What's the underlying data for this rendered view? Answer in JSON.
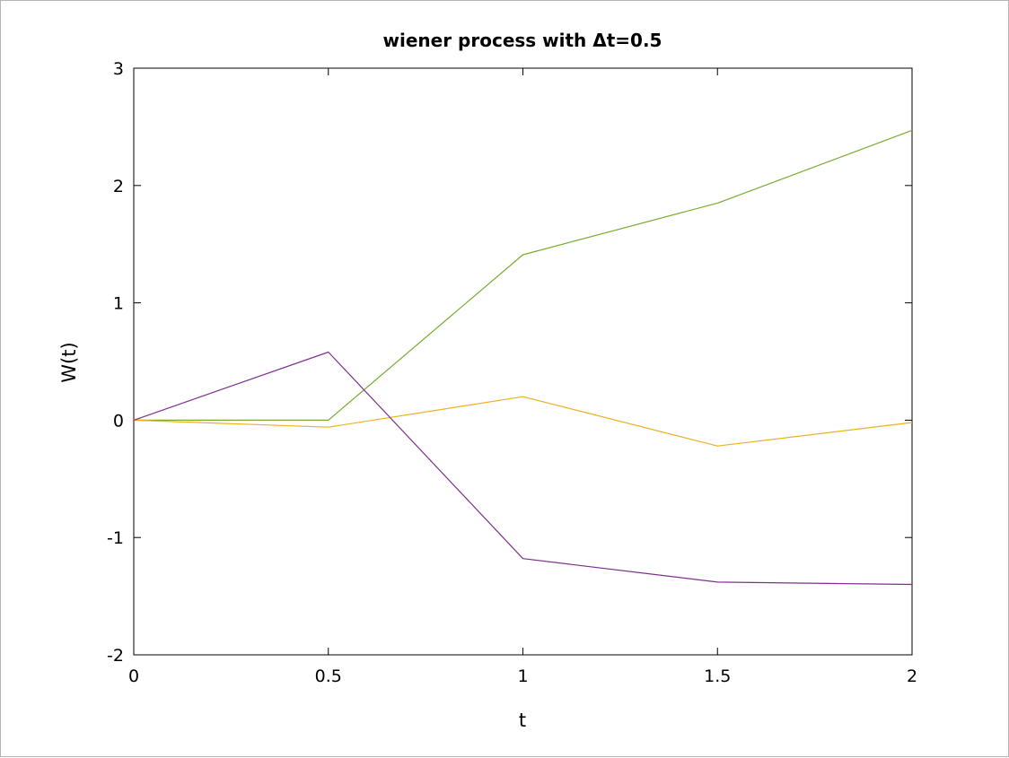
{
  "chart_data": {
    "type": "line",
    "title": "wiener process with Δt=0.5",
    "xlabel": "t",
    "ylabel": "W(t)",
    "xlim": [
      0,
      2
    ],
    "ylim": [
      -2,
      3
    ],
    "x_ticks": [
      "0",
      "0.5",
      "1",
      "1.5",
      "2"
    ],
    "y_ticks": [
      "-2",
      "-1",
      "0",
      "1",
      "2",
      "3"
    ],
    "grid": false,
    "legend": "none",
    "x": [
      0,
      0.5,
      1,
      1.5,
      2
    ],
    "series": [
      {
        "color": "#77ac30",
        "values": [
          0,
          0,
          1.41,
          1.85,
          2.47
        ]
      },
      {
        "color": "#edb120",
        "values": [
          0,
          -0.06,
          0.2,
          -0.22,
          -0.02
        ]
      },
      {
        "color": "#7e2f8e",
        "values": [
          0,
          0.58,
          -1.18,
          -1.38,
          -1.4
        ]
      }
    ]
  }
}
